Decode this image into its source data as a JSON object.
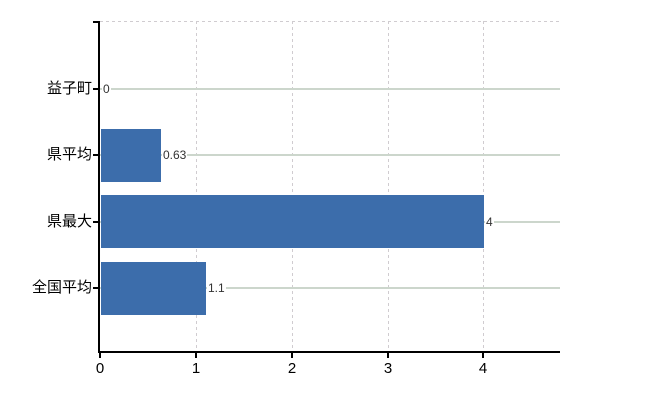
{
  "chart_data": {
    "type": "bar",
    "orientation": "horizontal",
    "title": "",
    "categories": [
      "益子町",
      "県平均",
      "県最大",
      "全国平均"
    ],
    "values": [
      0,
      0.63,
      4,
      1.1
    ],
    "value_labels": [
      "0",
      "0.63",
      "4",
      "1.1"
    ],
    "x_ticks": [
      "0",
      "1",
      "2",
      "3",
      "4"
    ],
    "x_tick_values": [
      0,
      1,
      2,
      3,
      4
    ],
    "xlim": [
      0,
      4.8
    ],
    "xlabel": "",
    "ylabel": "",
    "legend_position": "none",
    "grid": "vertical-dashed-and-category-lines",
    "colors": {
      "bar": "#3c6dab",
      "axis": "#000000",
      "dashed_grid": "#d0ccd0",
      "category_line": "#ccd6cc",
      "value_label": "#333333",
      "tick_label": "#000000",
      "background": "#ffffff"
    }
  }
}
